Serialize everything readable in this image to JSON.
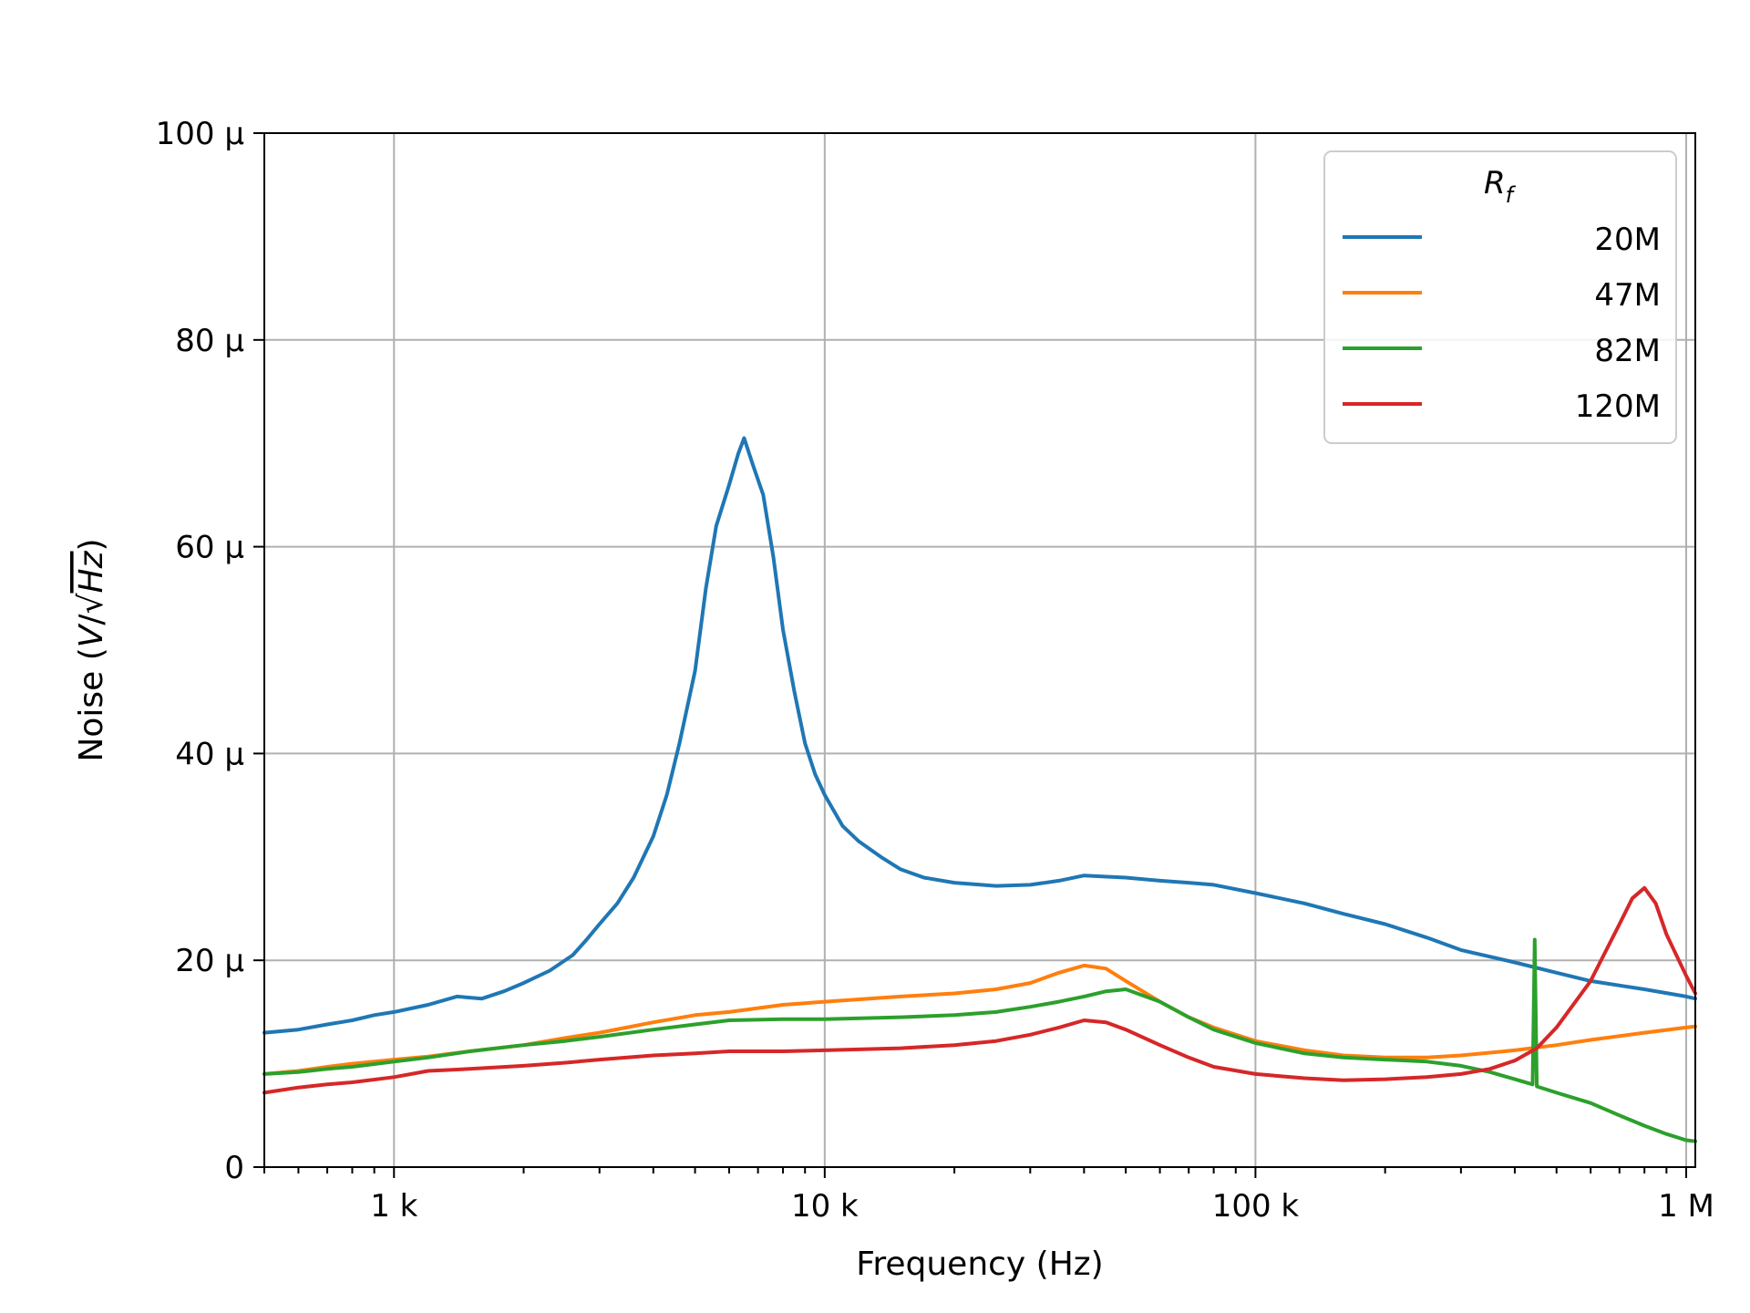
{
  "chart_data": {
    "type": "line",
    "xlabel": "Frequency (Hz)",
    "ylabel_prefix": "Noise (",
    "ylabel_unit_v": "V",
    "ylabel_slash": "/",
    "ylabel_sqrt": "√",
    "ylabel_unit_hz": "Hz",
    "ylabel_suffix": ")",
    "x_scale": "log",
    "xlim": [
      500,
      1050000
    ],
    "ylim": [
      0,
      0.0001
    ],
    "grid": true,
    "x_ticks": [
      {
        "value": 1000,
        "label": "1 k"
      },
      {
        "value": 10000,
        "label": "10 k"
      },
      {
        "value": 100000,
        "label": "100 k"
      },
      {
        "value": 1000000,
        "label": "1 M"
      }
    ],
    "y_ticks": [
      {
        "value": 0,
        "label": "0"
      },
      {
        "value": 2e-05,
        "label": "20 µ"
      },
      {
        "value": 4e-05,
        "label": "40 µ"
      },
      {
        "value": 6e-05,
        "label": "60 µ"
      },
      {
        "value": 8e-05,
        "label": "80 µ"
      },
      {
        "value": 0.0001,
        "label": "100 µ"
      }
    ],
    "legend": {
      "title_main": "R",
      "title_sub": "f",
      "placement": "top-right"
    },
    "series": [
      {
        "name": "20M",
        "color": "#1f77b4",
        "points": [
          [
            500,
            1.3e-05
          ],
          [
            600,
            1.33e-05
          ],
          [
            700,
            1.38e-05
          ],
          [
            800,
            1.42e-05
          ],
          [
            900,
            1.47e-05
          ],
          [
            1000,
            1.5e-05
          ],
          [
            1200,
            1.57e-05
          ],
          [
            1400,
            1.65e-05
          ],
          [
            1600,
            1.63e-05
          ],
          [
            1800,
            1.7e-05
          ],
          [
            2000,
            1.78e-05
          ],
          [
            2300,
            1.9e-05
          ],
          [
            2600,
            2.05e-05
          ],
          [
            2800,
            2.2e-05
          ],
          [
            3000,
            2.35e-05
          ],
          [
            3300,
            2.55e-05
          ],
          [
            3600,
            2.8e-05
          ],
          [
            4000,
            3.2e-05
          ],
          [
            4300,
            3.6e-05
          ],
          [
            4600,
            4.1e-05
          ],
          [
            5000,
            4.8e-05
          ],
          [
            5300,
            5.6e-05
          ],
          [
            5600,
            6.2e-05
          ],
          [
            6000,
            6.6e-05
          ],
          [
            6300,
            6.9e-05
          ],
          [
            6500,
            7.05e-05
          ],
          [
            6800,
            6.8e-05
          ],
          [
            7200,
            6.5e-05
          ],
          [
            7600,
            5.9e-05
          ],
          [
            8000,
            5.2e-05
          ],
          [
            8500,
            4.6e-05
          ],
          [
            9000,
            4.1e-05
          ],
          [
            9500,
            3.8e-05
          ],
          [
            10000,
            3.6e-05
          ],
          [
            11000,
            3.3e-05
          ],
          [
            12000,
            3.15e-05
          ],
          [
            13500,
            3e-05
          ],
          [
            15000,
            2.88e-05
          ],
          [
            17000,
            2.8e-05
          ],
          [
            20000,
            2.75e-05
          ],
          [
            25000,
            2.72e-05
          ],
          [
            30000,
            2.73e-05
          ],
          [
            35000,
            2.77e-05
          ],
          [
            40000,
            2.82e-05
          ],
          [
            50000,
            2.8e-05
          ],
          [
            60000,
            2.77e-05
          ],
          [
            70000,
            2.75e-05
          ],
          [
            80000,
            2.73e-05
          ],
          [
            100000,
            2.65e-05
          ],
          [
            130000,
            2.55e-05
          ],
          [
            160000,
            2.45e-05
          ],
          [
            200000,
            2.35e-05
          ],
          [
            250000,
            2.22e-05
          ],
          [
            300000,
            2.1e-05
          ],
          [
            400000,
            1.98e-05
          ],
          [
            500000,
            1.88e-05
          ],
          [
            600000,
            1.8e-05
          ],
          [
            800000,
            1.72e-05
          ],
          [
            1000000,
            1.65e-05
          ],
          [
            1050000,
            1.63e-05
          ]
        ]
      },
      {
        "name": "47M",
        "color": "#ff7f0e",
        "points": [
          [
            500,
            9e-06
          ],
          [
            600,
            9.3e-06
          ],
          [
            700,
            9.7e-06
          ],
          [
            800,
            1e-05
          ],
          [
            1000,
            1.04e-05
          ],
          [
            1200,
            1.07e-05
          ],
          [
            1500,
            1.12e-05
          ],
          [
            2000,
            1.18e-05
          ],
          [
            2500,
            1.25e-05
          ],
          [
            3000,
            1.3e-05
          ],
          [
            4000,
            1.4e-05
          ],
          [
            5000,
            1.47e-05
          ],
          [
            6000,
            1.5e-05
          ],
          [
            8000,
            1.57e-05
          ],
          [
            10000,
            1.6e-05
          ],
          [
            15000,
            1.65e-05
          ],
          [
            20000,
            1.68e-05
          ],
          [
            25000,
            1.72e-05
          ],
          [
            30000,
            1.78e-05
          ],
          [
            35000,
            1.88e-05
          ],
          [
            40000,
            1.95e-05
          ],
          [
            45000,
            1.92e-05
          ],
          [
            50000,
            1.8e-05
          ],
          [
            60000,
            1.6e-05
          ],
          [
            70000,
            1.45e-05
          ],
          [
            80000,
            1.35e-05
          ],
          [
            100000,
            1.22e-05
          ],
          [
            130000,
            1.13e-05
          ],
          [
            160000,
            1.08e-05
          ],
          [
            200000,
            1.06e-05
          ],
          [
            250000,
            1.06e-05
          ],
          [
            300000,
            1.08e-05
          ],
          [
            400000,
            1.13e-05
          ],
          [
            500000,
            1.18e-05
          ],
          [
            600000,
            1.23e-05
          ],
          [
            800000,
            1.3e-05
          ],
          [
            1000000,
            1.35e-05
          ],
          [
            1050000,
            1.36e-05
          ]
        ]
      },
      {
        "name": "82M",
        "color": "#2ca02c",
        "points": [
          [
            500,
            9e-06
          ],
          [
            600,
            9.2e-06
          ],
          [
            700,
            9.5e-06
          ],
          [
            800,
            9.7e-06
          ],
          [
            1000,
            1.02e-05
          ],
          [
            1200,
            1.06e-05
          ],
          [
            1500,
            1.12e-05
          ],
          [
            2000,
            1.18e-05
          ],
          [
            2500,
            1.22e-05
          ],
          [
            3000,
            1.26e-05
          ],
          [
            4000,
            1.33e-05
          ],
          [
            5000,
            1.38e-05
          ],
          [
            6000,
            1.42e-05
          ],
          [
            8000,
            1.43e-05
          ],
          [
            10000,
            1.43e-05
          ],
          [
            15000,
            1.45e-05
          ],
          [
            20000,
            1.47e-05
          ],
          [
            25000,
            1.5e-05
          ],
          [
            30000,
            1.55e-05
          ],
          [
            35000,
            1.6e-05
          ],
          [
            40000,
            1.65e-05
          ],
          [
            45000,
            1.7e-05
          ],
          [
            50000,
            1.72e-05
          ],
          [
            60000,
            1.6e-05
          ],
          [
            70000,
            1.45e-05
          ],
          [
            80000,
            1.33e-05
          ],
          [
            100000,
            1.2e-05
          ],
          [
            130000,
            1.1e-05
          ],
          [
            160000,
            1.06e-05
          ],
          [
            200000,
            1.04e-05
          ],
          [
            250000,
            1.02e-05
          ],
          [
            300000,
            9.8e-06
          ],
          [
            350000,
            9.2e-06
          ],
          [
            400000,
            8.5e-06
          ],
          [
            440000,
            8e-06
          ],
          [
            445000,
            2.2e-05
          ],
          [
            450000,
            7.8e-06
          ],
          [
            500000,
            7.2e-06
          ],
          [
            600000,
            6.2e-06
          ],
          [
            700000,
            5e-06
          ],
          [
            800000,
            4e-06
          ],
          [
            900000,
            3.2e-06
          ],
          [
            1000000,
            2.6e-06
          ],
          [
            1050000,
            2.5e-06
          ]
        ]
      },
      {
        "name": "120M",
        "color": "#d62728",
        "points": [
          [
            500,
            7.2e-06
          ],
          [
            600,
            7.7e-06
          ],
          [
            700,
            8e-06
          ],
          [
            800,
            8.2e-06
          ],
          [
            1000,
            8.7e-06
          ],
          [
            1200,
            9.3e-06
          ],
          [
            1500,
            9.5e-06
          ],
          [
            2000,
            9.8e-06
          ],
          [
            2500,
            1.01e-05
          ],
          [
            3000,
            1.04e-05
          ],
          [
            4000,
            1.08e-05
          ],
          [
            5000,
            1.1e-05
          ],
          [
            6000,
            1.12e-05
          ],
          [
            8000,
            1.12e-05
          ],
          [
            10000,
            1.13e-05
          ],
          [
            15000,
            1.15e-05
          ],
          [
            20000,
            1.18e-05
          ],
          [
            25000,
            1.22e-05
          ],
          [
            30000,
            1.28e-05
          ],
          [
            35000,
            1.35e-05
          ],
          [
            40000,
            1.42e-05
          ],
          [
            45000,
            1.4e-05
          ],
          [
            50000,
            1.33e-05
          ],
          [
            60000,
            1.18e-05
          ],
          [
            70000,
            1.06e-05
          ],
          [
            80000,
            9.7e-06
          ],
          [
            100000,
            9e-06
          ],
          [
            130000,
            8.6e-06
          ],
          [
            160000,
            8.4e-06
          ],
          [
            200000,
            8.5e-06
          ],
          [
            250000,
            8.7e-06
          ],
          [
            300000,
            9e-06
          ],
          [
            350000,
            9.5e-06
          ],
          [
            400000,
            1.03e-05
          ],
          [
            450000,
            1.15e-05
          ],
          [
            500000,
            1.35e-05
          ],
          [
            600000,
            1.8e-05
          ],
          [
            700000,
            2.35e-05
          ],
          [
            750000,
            2.6e-05
          ],
          [
            800000,
            2.7e-05
          ],
          [
            850000,
            2.55e-05
          ],
          [
            900000,
            2.25e-05
          ],
          [
            1000000,
            1.85e-05
          ],
          [
            1050000,
            1.68e-05
          ]
        ]
      }
    ]
  }
}
